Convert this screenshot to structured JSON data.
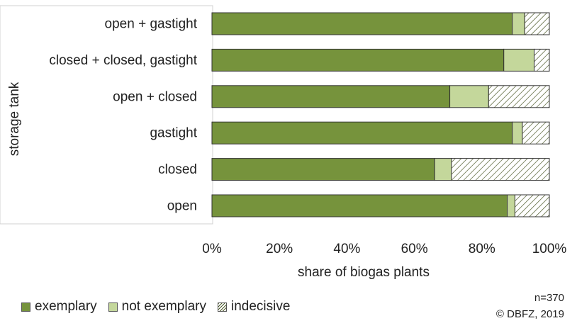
{
  "chart_data": {
    "type": "bar",
    "orientation": "horizontal",
    "stacked": true,
    "categories": [
      "open + gastight",
      "closed + closed, gastight",
      "open + closed",
      "gastight",
      "closed",
      "open"
    ],
    "series": [
      {
        "name": "exemplary",
        "color": "#76933c",
        "values": [
          0.89,
          0.865,
          0.705,
          0.89,
          0.66,
          0.875
        ]
      },
      {
        "name": "not exemplary",
        "color": "#c4d79b",
        "values": [
          0.037,
          0.09,
          0.115,
          0.03,
          0.05,
          0.023
        ]
      },
      {
        "name": "indecisive",
        "pattern": "diagonal-hatch",
        "values": [
          0.073,
          0.045,
          0.18,
          0.08,
          0.29,
          0.102
        ]
      }
    ],
    "xlabel": "share of biogas plants",
    "ylabel": "storage tank",
    "xticks": [
      "0%",
      "20%",
      "40%",
      "60%",
      "80%",
      "100%"
    ],
    "xlim": [
      0,
      1
    ],
    "grid": false,
    "legend_position": "bottom-left"
  },
  "notes": {
    "sample": "n=370",
    "copyright": "© DBFZ, 2019"
  }
}
